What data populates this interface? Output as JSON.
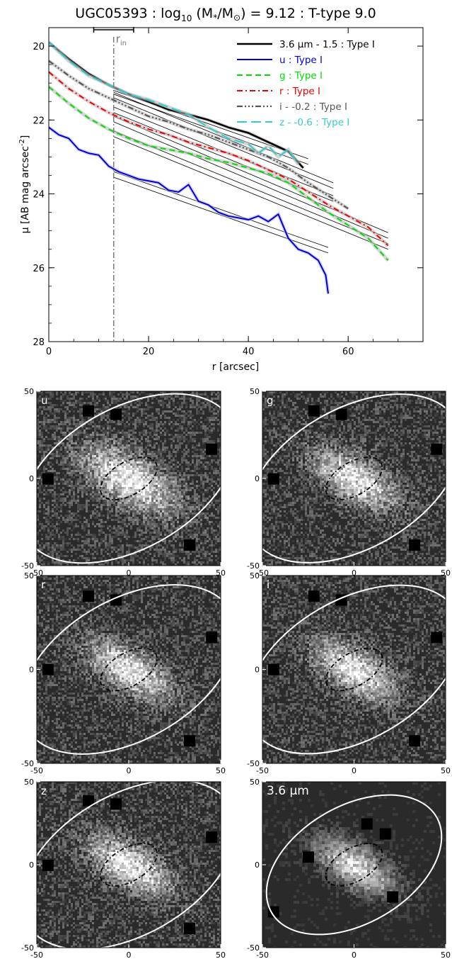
{
  "chart_data": [
    {
      "type": "line",
      "title_main": "UGC05393 : log",
      "title_sub10": "10",
      "title_mid": " (M",
      "title_star": "*",
      "title_slash": "/M",
      "title_sun": "⊙",
      "title_end": ") = 9.12 : T-type 9.0",
      "xlabel": "r [arcsec]",
      "ylabel_main": "μ [AB mag arcsec",
      "ylabel_sup": "-2",
      "ylabel_end": "]",
      "xlim": [
        0,
        75
      ],
      "ylim": [
        28,
        19.5
      ],
      "y_inverted": true,
      "xticks": [
        0,
        20,
        40,
        60
      ],
      "yticks": [
        20,
        22,
        24,
        26,
        28
      ],
      "rin_label": "r",
      "rin_sub": "in",
      "rin_value": 13,
      "rin_range": [
        9,
        17
      ],
      "series": [
        {
          "name": "3.6 μm - 1.5 : Type I",
          "color": "#000000",
          "dash": "",
          "width": 2.6,
          "points": [
            [
              0,
              19.9
            ],
            [
              4,
              20.35
            ],
            [
              8,
              20.75
            ],
            [
              12,
              21.05
            ],
            [
              16,
              21.3
            ],
            [
              20,
              21.5
            ],
            [
              24,
              21.72
            ],
            [
              28,
              21.85
            ],
            [
              32,
              22.0
            ],
            [
              36,
              22.2
            ],
            [
              40,
              22.35
            ],
            [
              44,
              22.6
            ],
            [
              48,
              22.85
            ],
            [
              51,
              23.3
            ]
          ],
          "fits": [
            [
              [
                13,
                21.2
              ],
              [
                52,
                23.05
              ]
            ],
            [
              [
                13,
                21.3
              ],
              [
                52,
                23.2
              ]
            ]
          ]
        },
        {
          "name": "u : Type I",
          "color": "#0000dd",
          "dash": "",
          "width": 2,
          "points": [
            [
              0,
              22.2
            ],
            [
              2,
              22.4
            ],
            [
              4,
              22.5
            ],
            [
              6,
              22.8
            ],
            [
              8,
              22.9
            ],
            [
              10,
              22.95
            ],
            [
              12,
              23.25
            ],
            [
              14,
              23.4
            ],
            [
              16,
              23.5
            ],
            [
              18,
              23.6
            ],
            [
              20,
              23.65
            ],
            [
              22,
              23.7
            ],
            [
              24,
              23.9
            ],
            [
              26,
              23.95
            ],
            [
              28,
              23.75
            ],
            [
              30,
              24.2
            ],
            [
              32,
              24.3
            ],
            [
              34,
              24.5
            ],
            [
              36,
              24.6
            ],
            [
              38,
              24.65
            ],
            [
              40,
              24.7
            ],
            [
              42,
              24.6
            ],
            [
              44,
              24.75
            ],
            [
              46,
              24.55
            ],
            [
              48,
              25.2
            ],
            [
              50,
              25.5
            ],
            [
              52,
              25.6
            ],
            [
              54,
              25.8
            ],
            [
              55.5,
              26.2
            ],
            [
              56,
              26.7
            ]
          ],
          "fits": [
            [
              [
                13,
                23.4
              ],
              [
                56,
                25.45
              ]
            ],
            [
              [
                13,
                23.55
              ],
              [
                56,
                25.6
              ]
            ]
          ]
        },
        {
          "name": "g : Type I",
          "color": "#00dd00",
          "dash": "8,5",
          "width": 2,
          "points": [
            [
              0,
              21.1
            ],
            [
              4,
              21.55
            ],
            [
              8,
              21.95
            ],
            [
              12,
              22.25
            ],
            [
              16,
              22.5
            ],
            [
              20,
              22.7
            ],
            [
              24,
              22.8
            ],
            [
              28,
              22.9
            ],
            [
              32,
              23.05
            ],
            [
              36,
              23.15
            ],
            [
              40,
              23.3
            ],
            [
              44,
              23.45
            ],
            [
              48,
              23.7
            ],
            [
              52,
              24.1
            ],
            [
              56,
              24.5
            ],
            [
              60,
              24.85
            ],
            [
              64,
              25.2
            ],
            [
              68,
              25.8
            ]
          ],
          "fits": [
            [
              [
                13,
                22.3
              ],
              [
                68,
                25.35
              ]
            ],
            [
              [
                13,
                22.45
              ],
              [
                68,
                25.5
              ]
            ]
          ]
        },
        {
          "name": "r : Type I",
          "color": "#ee0000",
          "dash": "8,4,2,4",
          "width": 2,
          "points": [
            [
              0,
              20.7
            ],
            [
              4,
              21.15
            ],
            [
              8,
              21.5
            ],
            [
              12,
              21.8
            ],
            [
              16,
              22.05
            ],
            [
              20,
              22.25
            ],
            [
              24,
              22.4
            ],
            [
              28,
              22.6
            ],
            [
              32,
              22.75
            ],
            [
              36,
              22.9
            ],
            [
              40,
              23.1
            ],
            [
              44,
              23.35
            ],
            [
              48,
              23.6
            ],
            [
              52,
              23.95
            ],
            [
              56,
              24.3
            ],
            [
              60,
              24.6
            ],
            [
              64,
              24.9
            ],
            [
              68,
              25.4
            ]
          ],
          "fits": [
            [
              [
                13,
                21.9
              ],
              [
                68,
                25.05
              ]
            ],
            [
              [
                13,
                22.05
              ],
              [
                68,
                25.2
              ]
            ]
          ]
        },
        {
          "name": "i - -0.2 : Type I",
          "color": "#555555",
          "dash": "8,3,2,3,2,3,2,3",
          "width": 2.2,
          "points": [
            [
              0,
              20.4
            ],
            [
              4,
              20.8
            ],
            [
              8,
              21.15
            ],
            [
              12,
              21.4
            ],
            [
              16,
              21.65
            ],
            [
              20,
              21.9
            ],
            [
              24,
              22.05
            ],
            [
              28,
              22.25
            ],
            [
              32,
              22.4
            ],
            [
              36,
              22.6
            ],
            [
              40,
              22.8
            ],
            [
              44,
              23.0
            ],
            [
              48,
              23.3
            ],
            [
              52,
              23.7
            ],
            [
              56,
              24.05
            ],
            [
              60,
              24.4
            ]
          ],
          "fits": [
            [
              [
                13,
                21.65
              ],
              [
                57,
                24.05
              ]
            ],
            [
              [
                13,
                21.8
              ],
              [
                57,
                24.2
              ]
            ]
          ]
        },
        {
          "name": "z - -0.6 : Type I",
          "color": "#33cccc",
          "dash": "14,6",
          "width": 2,
          "points": [
            [
              0,
              19.9
            ],
            [
              4,
              20.4
            ],
            [
              8,
              20.8
            ],
            [
              12,
              21.05
            ],
            [
              16,
              21.3
            ],
            [
              20,
              21.45
            ],
            [
              24,
              21.65
            ],
            [
              28,
              21.85
            ],
            [
              32,
              22.2
            ],
            [
              36,
              22.5
            ],
            [
              40,
              22.65
            ],
            [
              42,
              22.9
            ],
            [
              44,
              22.7
            ],
            [
              46,
              23.0
            ],
            [
              48,
              22.8
            ],
            [
              50,
              23.2
            ]
          ],
          "fits": [
            [
              [
                13,
                21.25
              ],
              [
                57,
                23.7
              ]
            ],
            [
              [
                13,
                21.4
              ],
              [
                57,
                23.85
              ]
            ]
          ]
        }
      ]
    },
    {
      "type": "image-grid",
      "panels": [
        {
          "band": "u",
          "inner_dash": "6,3,1.5,3"
        },
        {
          "band": "g",
          "inner_dash": "6,3,1.5,3"
        },
        {
          "band": "r",
          "inner_dash": "6,3,1.5,3"
        },
        {
          "band": "i",
          "inner_dash": "6,3,1.5,3"
        },
        {
          "band": "z",
          "inner_dash": "6,3,1.5,3"
        },
        {
          "band": "3.6 μm",
          "inner_dash": "6,3,1.5,3"
        }
      ],
      "axis_range": [
        -50,
        50
      ],
      "ticks": [
        -50,
        0,
        50
      ],
      "outer_ellipse": {
        "rx": 64,
        "ry": 38,
        "angle_deg": 30
      },
      "outer_ellipse_36": {
        "rx": 52,
        "ry": 32,
        "angle_deg": 30
      },
      "inner_ellipse": {
        "rx": 17,
        "ry": 9,
        "angle_deg": 30
      }
    }
  ]
}
